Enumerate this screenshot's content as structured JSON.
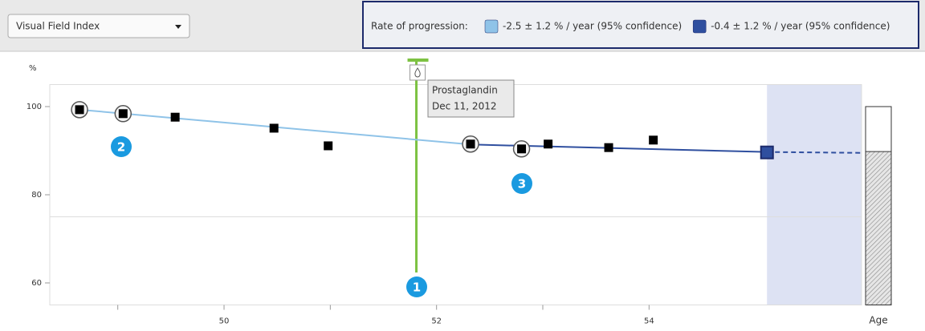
{
  "dropdown": "Visual Field Index",
  "legend_title": "Rate of progression:",
  "callouts": [
    "1",
    "2",
    "3"
  ],
  "annotation": {
    "label": "Prostaglandin",
    "date": "Dec 11, 2012",
    "x": 51.81
  },
  "chart_data": {
    "type": "scatter",
    "ylabel": "%",
    "xlabel": "Age",
    "xlim": [
      48.36,
      56
    ],
    "xticks": [
      50,
      52,
      54
    ],
    "minor_xticks": [
      49,
      51,
      53
    ],
    "ylim": [
      55,
      105
    ],
    "yticks": [
      60,
      80,
      100
    ],
    "reference_line": 75,
    "points": {
      "x": [
        48.64,
        49.05,
        49.54,
        50.47,
        50.98,
        52.32,
        52.8,
        53.05,
        53.62,
        54.04,
        55.11
      ],
      "values": [
        99.3,
        98.4,
        97.6,
        95.1,
        91.1,
        91.5,
        90.4,
        91.5,
        90.7,
        92.4,
        89.6
      ],
      "circled": [
        true,
        true,
        false,
        false,
        false,
        true,
        true,
        false,
        false,
        false,
        false
      ],
      "color": "#000000",
      "last_color": "#2f4f9f"
    },
    "trends": [
      {
        "name": "-2.5 ± 1.2 % / year (95% confidence)",
        "color": "#8fc3e8",
        "x": [
          48.64,
          52.32
        ],
        "values": [
          99.3,
          91.4
        ]
      },
      {
        "name": "-0.4 ± 1.2 % / year (95% confidence)",
        "color": "#2f4f9f",
        "x": [
          52.32,
          55.11
        ],
        "values": [
          91.4,
          89.7
        ],
        "projection_x": [
          55.11,
          56
        ],
        "projection_values": [
          89.7,
          89.5
        ]
      }
    ],
    "projection_region": [
      55.11,
      56
    ],
    "projection_bar": {
      "value": 89.8,
      "max": 100
    }
  }
}
